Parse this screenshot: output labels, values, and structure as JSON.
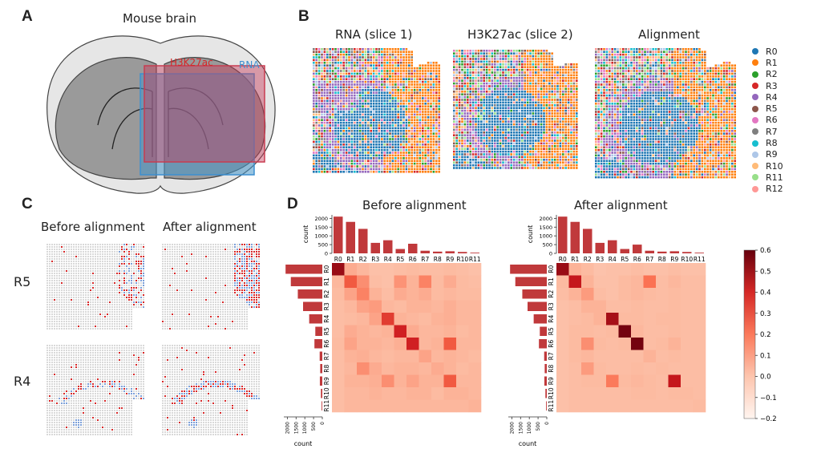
{
  "panels": {
    "A": {
      "letter": "A",
      "title": "Mouse brain",
      "label_h3k27ac": "H3K27ac",
      "label_rna": "RNA"
    },
    "B": {
      "letter": "B",
      "titles": [
        "RNA (slice 1)",
        "H3K27ac (slice 2)",
        "Alignment"
      ]
    },
    "C": {
      "letter": "C",
      "col_titles": [
        "Before alignment",
        "After alignment"
      ],
      "row_labels": [
        "R5",
        "R4"
      ]
    },
    "D": {
      "letter": "D",
      "titles": [
        "Before alignment",
        "After alignment"
      ],
      "count_label": "count"
    }
  },
  "legend": [
    {
      "label": "R0",
      "color": "#1f77b4"
    },
    {
      "label": "R1",
      "color": "#ff7f0e"
    },
    {
      "label": "R2",
      "color": "#2ca02c"
    },
    {
      "label": "R3",
      "color": "#d62728"
    },
    {
      "label": "R4",
      "color": "#9467bd"
    },
    {
      "label": "R5",
      "color": "#8c564b"
    },
    {
      "label": "R6",
      "color": "#e377c2"
    },
    {
      "label": "R7",
      "color": "#7f7f7f"
    },
    {
      "label": "R8",
      "color": "#17becf"
    },
    {
      "label": "R9",
      "color": "#aec7e8"
    },
    {
      "label": "R10",
      "color": "#ffbb78"
    },
    {
      "label": "R11",
      "color": "#98df8a"
    },
    {
      "label": "R12",
      "color": "#ff9896"
    }
  ],
  "chart_data": [
    {
      "type": "heatmap",
      "title": "Before alignment",
      "categories": [
        "R0",
        "R1",
        "R2",
        "R3",
        "R4",
        "R5",
        "R6",
        "R7",
        "R8",
        "R9",
        "R10",
        "R11"
      ],
      "top_counts": [
        2100,
        1800,
        1400,
        600,
        750,
        250,
        550,
        150,
        100,
        120,
        80,
        40
      ],
      "left_counts": [
        2100,
        1800,
        1400,
        1100,
        750,
        400,
        450,
        150,
        120,
        140,
        80,
        40
      ],
      "count_ticks_top": [
        0,
        500,
        1000,
        1500,
        2000
      ],
      "count_ticks_left": [
        2000,
        1500,
        1000,
        500,
        0
      ],
      "matrix": [
        [
          0.52,
          0.08,
          0.05,
          0.02,
          0.02,
          0.03,
          0.04,
          0.03,
          0.03,
          0.04,
          0.03,
          0.02
        ],
        [
          0.05,
          0.28,
          0.15,
          0.03,
          0.02,
          0.14,
          0.06,
          0.18,
          0.04,
          0.08,
          0.04,
          0.03
        ],
        [
          0.04,
          0.1,
          0.18,
          0.06,
          0.03,
          0.08,
          0.06,
          0.08,
          0.04,
          0.05,
          0.04,
          0.04
        ],
        [
          0.03,
          0.05,
          0.1,
          0.12,
          0.05,
          0.04,
          0.06,
          0.06,
          0.05,
          0.07,
          0.05,
          0.05
        ],
        [
          0.03,
          0.04,
          0.05,
          0.1,
          0.35,
          0.06,
          0.05,
          0.04,
          0.06,
          0.07,
          0.05,
          0.05
        ],
        [
          0.03,
          0.08,
          0.06,
          0.05,
          0.06,
          0.42,
          0.08,
          0.05,
          0.05,
          0.06,
          0.04,
          0.05
        ],
        [
          0.04,
          0.1,
          0.06,
          0.06,
          0.05,
          0.07,
          0.42,
          0.05,
          0.06,
          0.28,
          0.05,
          0.05
        ],
        [
          0.03,
          0.06,
          0.07,
          0.05,
          0.04,
          0.05,
          0.05,
          0.1,
          0.05,
          0.06,
          0.05,
          0.04
        ],
        [
          0.03,
          0.05,
          0.15,
          0.08,
          0.05,
          0.06,
          0.06,
          0.05,
          0.08,
          0.06,
          0.04,
          0.05
        ],
        [
          0.03,
          0.06,
          0.06,
          0.07,
          0.15,
          0.06,
          0.1,
          0.06,
          0.06,
          0.28,
          0.05,
          0.05
        ],
        [
          0.03,
          0.05,
          0.05,
          0.06,
          0.05,
          0.05,
          0.06,
          0.06,
          0.04,
          0.06,
          0.06,
          0.05
        ],
        [
          0.03,
          0.05,
          0.05,
          0.05,
          0.05,
          0.05,
          0.05,
          0.05,
          0.05,
          0.05,
          0.05,
          0.06
        ]
      ]
    },
    {
      "type": "heatmap",
      "title": "After alignment",
      "categories": [
        "R0",
        "R1",
        "R2",
        "R3",
        "R4",
        "R5",
        "R6",
        "R7",
        "R8",
        "R9",
        "R10",
        "R11"
      ],
      "top_counts": [
        2100,
        1800,
        1400,
        600,
        750,
        250,
        500,
        150,
        100,
        120,
        80,
        40
      ],
      "left_counts": [
        2100,
        1800,
        1400,
        1100,
        750,
        400,
        450,
        150,
        120,
        140,
        80,
        40
      ],
      "count_ticks_top": [
        0,
        500,
        1000,
        1500,
        2000
      ],
      "count_ticks_left": [
        2000,
        1500,
        1000,
        500,
        0
      ],
      "matrix": [
        [
          0.52,
          0.06,
          0.04,
          0.01,
          0.02,
          0.02,
          0.03,
          0.02,
          0.02,
          0.03,
          0.02,
          0.02
        ],
        [
          0.04,
          0.45,
          0.06,
          0.02,
          0.02,
          0.04,
          0.05,
          0.22,
          0.03,
          0.05,
          0.03,
          0.03
        ],
        [
          0.03,
          0.06,
          0.12,
          0.03,
          0.02,
          0.04,
          0.05,
          0.04,
          0.03,
          0.04,
          0.03,
          0.03
        ],
        [
          0.02,
          0.03,
          0.06,
          0.06,
          0.03,
          0.03,
          0.04,
          0.03,
          0.03,
          0.04,
          0.03,
          0.03
        ],
        [
          0.02,
          0.03,
          0.04,
          0.06,
          0.5,
          0.04,
          0.04,
          0.03,
          0.04,
          0.04,
          0.03,
          0.03
        ],
        [
          0.02,
          0.04,
          0.04,
          0.03,
          0.04,
          0.58,
          0.05,
          0.03,
          0.03,
          0.04,
          0.03,
          0.03
        ],
        [
          0.02,
          0.04,
          0.15,
          0.04,
          0.03,
          0.04,
          0.58,
          0.03,
          0.04,
          0.06,
          0.03,
          0.03
        ],
        [
          0.02,
          0.04,
          0.05,
          0.03,
          0.03,
          0.03,
          0.03,
          0.06,
          0.03,
          0.04,
          0.03,
          0.03
        ],
        [
          0.02,
          0.03,
          0.12,
          0.04,
          0.03,
          0.03,
          0.04,
          0.03,
          0.04,
          0.03,
          0.03,
          0.03
        ],
        [
          0.02,
          0.03,
          0.04,
          0.04,
          0.2,
          0.04,
          0.05,
          0.04,
          0.03,
          0.45,
          0.03,
          0.03
        ],
        [
          0.02,
          0.03,
          0.03,
          0.03,
          0.03,
          0.03,
          0.04,
          0.04,
          0.03,
          0.04,
          0.04,
          0.03
        ],
        [
          0.02,
          0.03,
          0.03,
          0.03,
          0.03,
          0.03,
          0.03,
          0.03,
          0.03,
          0.03,
          0.03,
          0.04
        ]
      ]
    }
  ],
  "colorbar": {
    "ticks": [
      "0.6",
      "0.5",
      "0.4",
      "0.3",
      "0.2",
      "0.1",
      "0.0",
      "−0.1",
      "−0.2"
    ],
    "min": -0.2,
    "max": 0.6
  }
}
